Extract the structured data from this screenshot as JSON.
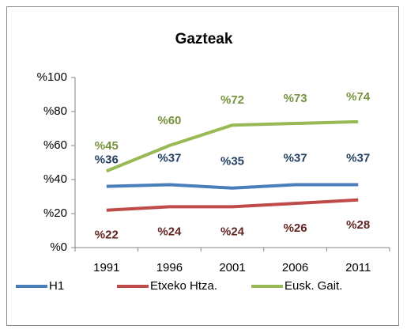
{
  "chart_data": {
    "type": "line",
    "title": "Gazteak",
    "categories": [
      "1991",
      "1996",
      "2001",
      "2006",
      "2011"
    ],
    "series": [
      {
        "name": "H1",
        "color": "#4a7ebb",
        "label_color": "#254061",
        "values": [
          36,
          37,
          35,
          37,
          37
        ],
        "value_labels": [
          "%36",
          "%37",
          "%35",
          "%37",
          "%37"
        ]
      },
      {
        "name": "Etxeko Htza.",
        "color": "#be4b48",
        "label_color": "#632523",
        "values": [
          22,
          24,
          24,
          26,
          28
        ],
        "value_labels": [
          "%22",
          "%24",
          "%24",
          "%26",
          "%28"
        ]
      },
      {
        "name": "Eusk. Gait.",
        "color": "#98b954",
        "label_color": "#77933c",
        "values": [
          45,
          60,
          72,
          73,
          74
        ],
        "value_labels": [
          "%45",
          "%60",
          "%72",
          "%73",
          "%74"
        ]
      }
    ],
    "ylim": [
      0,
      100
    ],
    "yticks": [
      {
        "value": 0,
        "label": "%0"
      },
      {
        "value": 20,
        "label": "%20"
      },
      {
        "value": 40,
        "label": "%40"
      },
      {
        "value": 60,
        "label": "%60"
      },
      {
        "value": 80,
        "label": "%80"
      },
      {
        "value": 100,
        "label": "%100"
      }
    ],
    "grid": false,
    "legend": "bottom"
  }
}
